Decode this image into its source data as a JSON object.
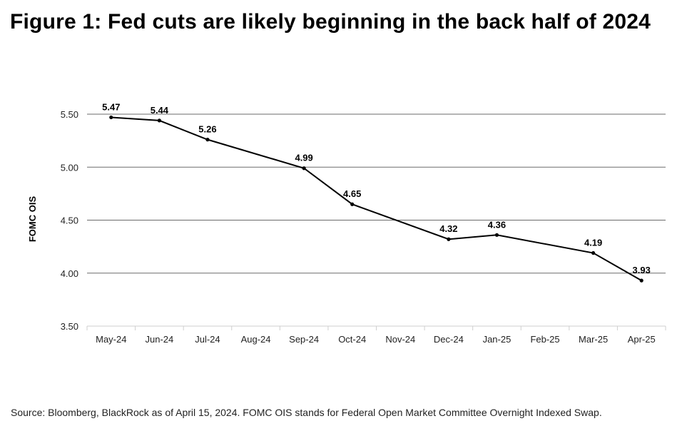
{
  "title": "Figure 1: Fed cuts are likely beginning in the back half of 2024",
  "source": "Source: Bloomberg, BlackRock as of April 15, 2024. FOMC OIS stands for Federal Open Market Committee Overnight Indexed Swap.",
  "chart_data": {
    "type": "line",
    "title": "Figure 1: Fed cuts are likely beginning in the back half of 2024",
    "xlabel": "",
    "ylabel": "FOMC OIS",
    "categories": [
      "May-24",
      "Jun-24",
      "Jul-24",
      "Aug-24",
      "Sep-24",
      "Oct-24",
      "Nov-24",
      "Dec-24",
      "Jan-25",
      "Feb-25",
      "Mar-25",
      "Apr-25"
    ],
    "x": [
      "May-24",
      "Jun-24",
      "Jul-24",
      "Sep-24",
      "Oct-24",
      "Dec-24",
      "Jan-25",
      "Mar-25",
      "Apr-25"
    ],
    "values": [
      5.47,
      5.44,
      5.26,
      4.99,
      4.65,
      4.32,
      4.36,
      4.19,
      3.93
    ],
    "value_labels": [
      "5.47",
      "5.44",
      "5.26",
      "4.99",
      "4.65",
      "4.32",
      "4.36",
      "4.19",
      "3.93"
    ],
    "ylim": [
      3.5,
      5.5
    ],
    "yticks": [
      "3.50",
      "4.00",
      "4.50",
      "5.00",
      "5.50"
    ],
    "grid": true,
    "legend": "none"
  }
}
